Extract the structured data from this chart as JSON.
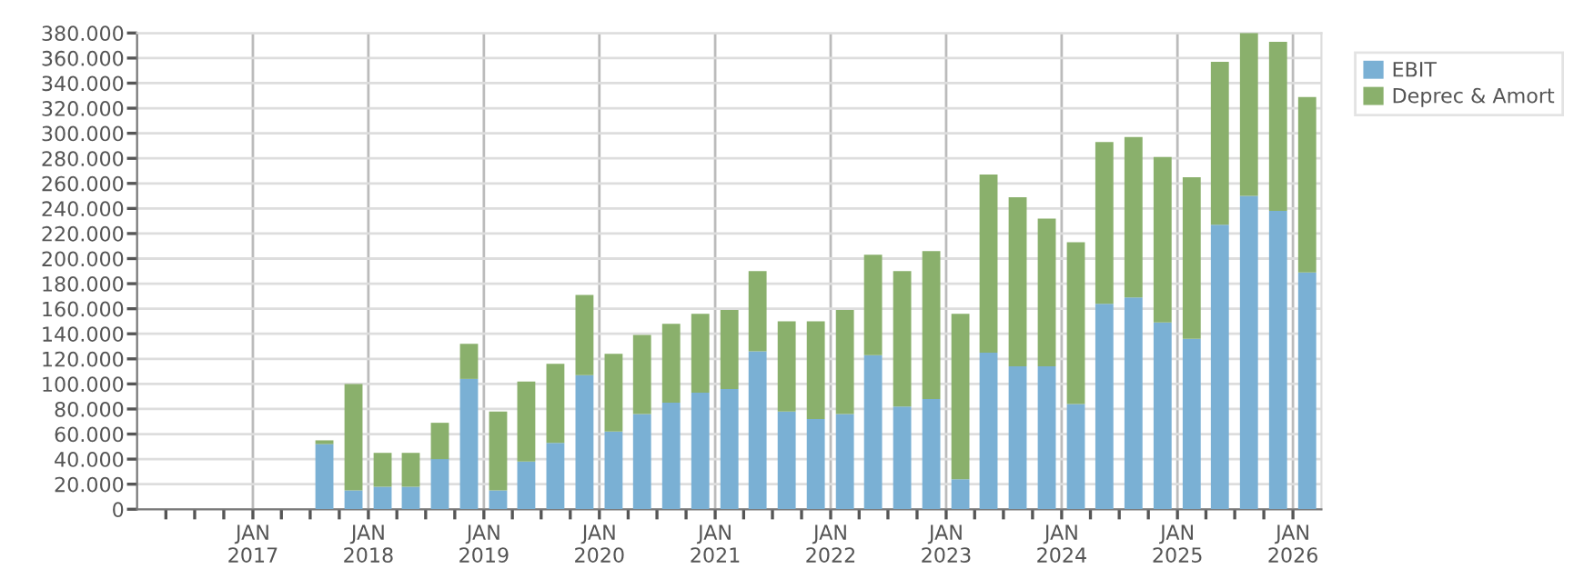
{
  "chart_data": {
    "type": "bar",
    "stacked": true,
    "x": [
      "2017-08-15",
      "2017-11-15",
      "2018-02-15",
      "2018-05-15",
      "2018-08-15",
      "2018-11-15",
      "2019-02-15",
      "2019-05-15",
      "2019-08-15",
      "2019-11-15",
      "2020-02-15",
      "2020-05-15",
      "2020-08-15",
      "2020-11-15",
      "2021-02-15",
      "2021-05-15",
      "2021-08-15",
      "2021-11-15",
      "2022-02-15",
      "2022-05-15",
      "2022-08-15",
      "2022-11-15",
      "2023-02-15",
      "2023-05-15",
      "2023-08-15",
      "2023-11-15",
      "2024-02-15",
      "2024-05-15",
      "2024-08-15",
      "2024-11-15",
      "2025-02-15",
      "2025-05-15",
      "2025-08-15",
      "2025-11-15",
      "2026-02-15"
    ],
    "series": [
      {
        "name": "EBIT",
        "color": "#7ab0d4",
        "values": [
          52000,
          15000,
          18000,
          18000,
          40000,
          104000,
          15000,
          38000,
          53000,
          107000,
          62000,
          76000,
          85000,
          93000,
          96000,
          126000,
          78000,
          72000,
          76000,
          123000,
          82000,
          88000,
          24000,
          125000,
          114000,
          114000,
          84000,
          164000,
          169000,
          149000,
          136000,
          227000,
          250000,
          238000,
          189000
        ]
      },
      {
        "name": "Deprec & Amort",
        "color": "#8ab06c",
        "values": [
          3000,
          85000,
          27000,
          27000,
          29000,
          28000,
          63000,
          64000,
          63000,
          64000,
          62000,
          63000,
          63000,
          63000,
          63000,
          64000,
          72000,
          78000,
          83000,
          80000,
          108000,
          118000,
          132000,
          142000,
          135000,
          118000,
          129000,
          129000,
          128000,
          132000,
          129000,
          130000,
          130000,
          135000,
          140000
        ]
      }
    ],
    "xlim": [
      "2016-01-01",
      "2026-04-01"
    ],
    "xticks": [
      {
        "value": "2016-04-01",
        "label": null
      },
      {
        "value": "2016-07-01",
        "label": null
      },
      {
        "value": "2016-10-01",
        "label": null
      },
      {
        "value": "2017-01-01",
        "label": "JAN\n2017"
      },
      {
        "value": "2017-04-01",
        "label": null
      },
      {
        "value": "2017-07-01",
        "label": null
      },
      {
        "value": "2017-10-01",
        "label": null
      },
      {
        "value": "2018-01-01",
        "label": "JAN\n2018"
      },
      {
        "value": "2018-04-01",
        "label": null
      },
      {
        "value": "2018-07-01",
        "label": null
      },
      {
        "value": "2018-10-01",
        "label": null
      },
      {
        "value": "2019-01-01",
        "label": "JAN\n2019"
      },
      {
        "value": "2019-04-01",
        "label": null
      },
      {
        "value": "2019-07-01",
        "label": null
      },
      {
        "value": "2019-10-01",
        "label": null
      },
      {
        "value": "2020-01-01",
        "label": "JAN\n2020"
      },
      {
        "value": "2020-04-01",
        "label": null
      },
      {
        "value": "2020-07-01",
        "label": null
      },
      {
        "value": "2020-10-01",
        "label": null
      },
      {
        "value": "2021-01-01",
        "label": "JAN\n2021"
      },
      {
        "value": "2021-04-01",
        "label": null
      },
      {
        "value": "2021-07-01",
        "label": null
      },
      {
        "value": "2021-10-01",
        "label": null
      },
      {
        "value": "2022-01-01",
        "label": "JAN\n2022"
      },
      {
        "value": "2022-04-01",
        "label": null
      },
      {
        "value": "2022-07-01",
        "label": null
      },
      {
        "value": "2022-10-01",
        "label": null
      },
      {
        "value": "2023-01-01",
        "label": "JAN\n2023"
      },
      {
        "value": "2023-04-01",
        "label": null
      },
      {
        "value": "2023-07-01",
        "label": null
      },
      {
        "value": "2023-10-01",
        "label": null
      },
      {
        "value": "2024-01-01",
        "label": "JAN\n2024"
      },
      {
        "value": "2024-04-01",
        "label": null
      },
      {
        "value": "2024-07-01",
        "label": null
      },
      {
        "value": "2024-10-01",
        "label": null
      },
      {
        "value": "2025-01-01",
        "label": "JAN\n2025"
      },
      {
        "value": "2025-04-01",
        "label": null
      },
      {
        "value": "2025-07-01",
        "label": null
      },
      {
        "value": "2025-10-01",
        "label": null
      },
      {
        "value": "2026-01-01",
        "label": "JAN\n2026"
      }
    ],
    "ylim": [
      0,
      380000
    ],
    "yticks": [
      0,
      {
        "value": 20000,
        "label": "20.000"
      },
      {
        "value": 40000,
        "label": "40.000"
      },
      {
        "value": 60000,
        "label": "60.000"
      },
      {
        "value": 80000,
        "label": "80.000"
      },
      {
        "value": 100000,
        "label": "100.000"
      },
      {
        "value": 120000,
        "label": "120.000"
      },
      {
        "value": 140000,
        "label": "140.000"
      },
      {
        "value": 160000,
        "label": "160.000"
      },
      {
        "value": 180000,
        "label": "180.000"
      },
      {
        "value": 200000,
        "label": "200.000"
      },
      {
        "value": 220000,
        "label": "220.000"
      },
      {
        "value": 240000,
        "label": "240.000"
      },
      {
        "value": 260000,
        "label": "260.000"
      },
      {
        "value": 280000,
        "label": "280.000"
      },
      {
        "value": 300000,
        "label": "300.000"
      },
      {
        "value": 320000,
        "label": "320.000"
      },
      {
        "value": 340000,
        "label": "340.000"
      },
      {
        "value": 360000,
        "label": "360.000"
      },
      {
        "value": 380000,
        "label": "380.000"
      }
    ],
    "grid": true,
    "legend": "top right"
  }
}
